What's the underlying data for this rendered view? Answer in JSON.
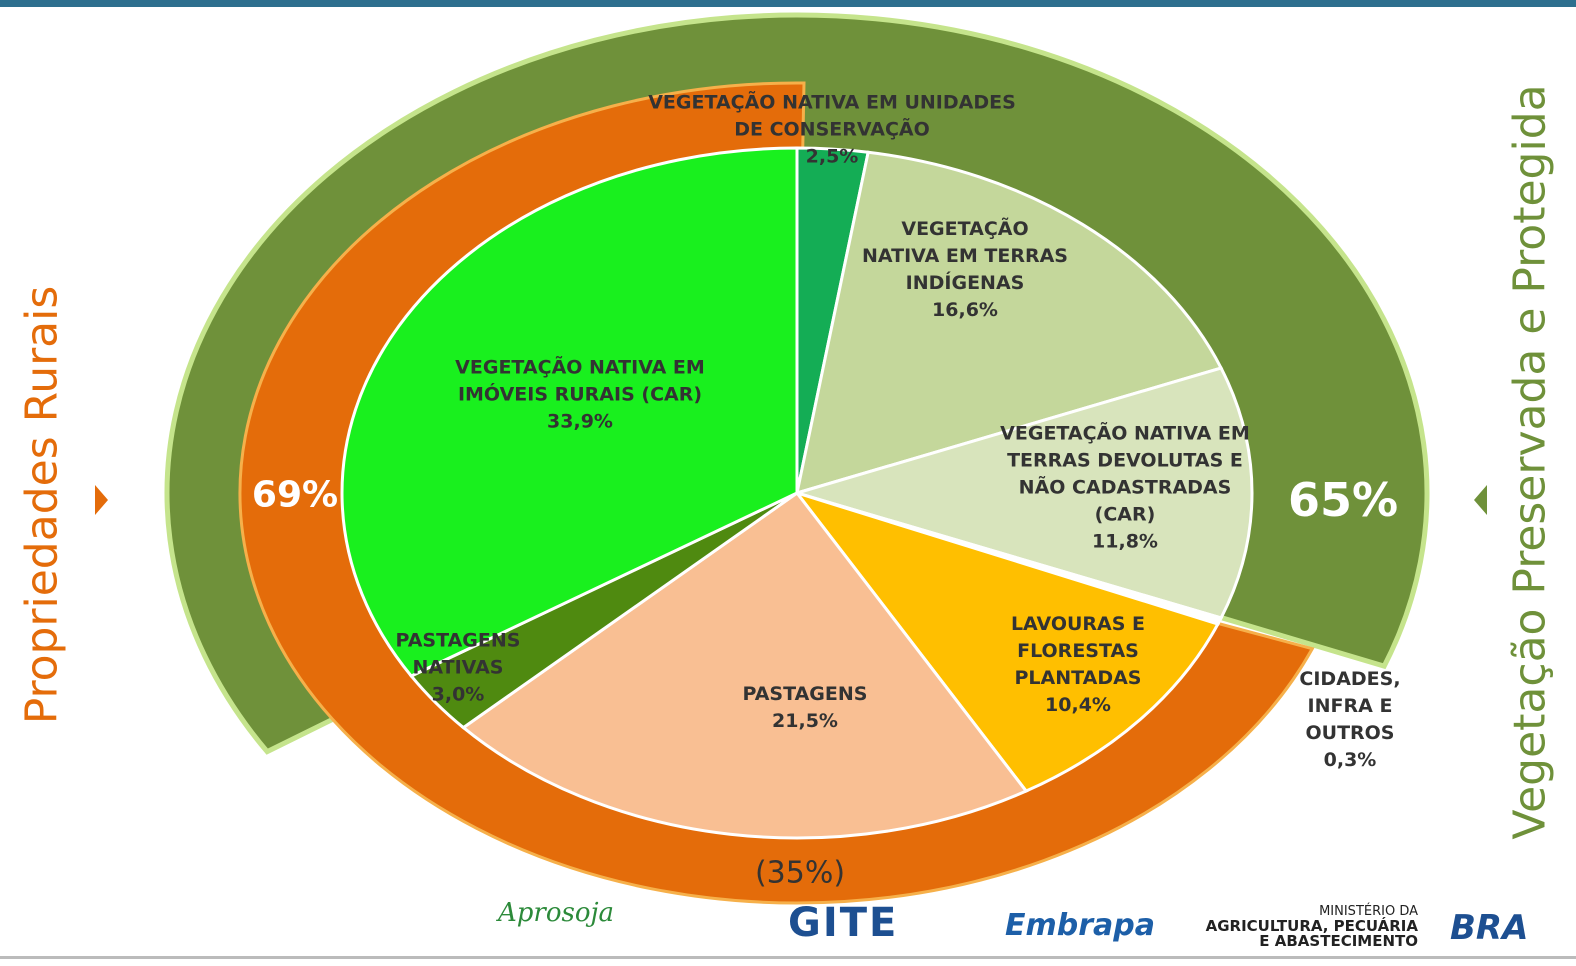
{
  "chart_data": {
    "type": "pie",
    "categories": [
      "VEGETAÇÃO NATIVA EM UNIDADES DE CONSERVAÇÃO",
      "VEGETAÇÃO NATIVA EM TERRAS INDÍGENAS",
      "VEGETAÇÃO NATIVA EM TERRAS DEVOLUTAS E NÃO CADASTRADAS (CAR)",
      "CIDADES, INFRA E OUTROS",
      "LAVOURAS E FLORESTAS PLANTADAS",
      "PASTAGENS",
      "PASTAGENS NATIVAS",
      "VEGETAÇÃO NATIVA EM IMÓVEIS RURAIS (CAR)"
    ],
    "values": [
      2.5,
      16.6,
      11.8,
      0.3,
      10.4,
      21.5,
      3.0,
      33.9
    ],
    "value_labels": [
      "2,5%",
      "16,6%",
      "11,8%",
      "0,3%",
      "10,4%",
      "21,5%",
      "3,0%",
      "33,9%"
    ],
    "colors": [
      "#14ad55",
      "#c4d79b",
      "#d8e4bc",
      "#ffffff",
      "#ffbf00",
      "#f9bf93",
      "#4f8a10",
      "#19f01e"
    ],
    "rings": [
      {
        "name": "Propriedades Rurais",
        "value": 69,
        "value_label": "69%",
        "color": "#e46c0a"
      },
      {
        "name": "Vegetação Preservada e Protegida",
        "value": 65,
        "value_label": "65%",
        "color": "#6f913a"
      }
    ],
    "annotations": [
      "(35%)"
    ]
  },
  "logos": [
    "Aprosoja",
    "GITE",
    "Embrapa",
    "MINISTÉRIO DA",
    "AGRICULTURA, PECUÁRIA",
    "E ABASTECIMENTO",
    "BRA"
  ]
}
